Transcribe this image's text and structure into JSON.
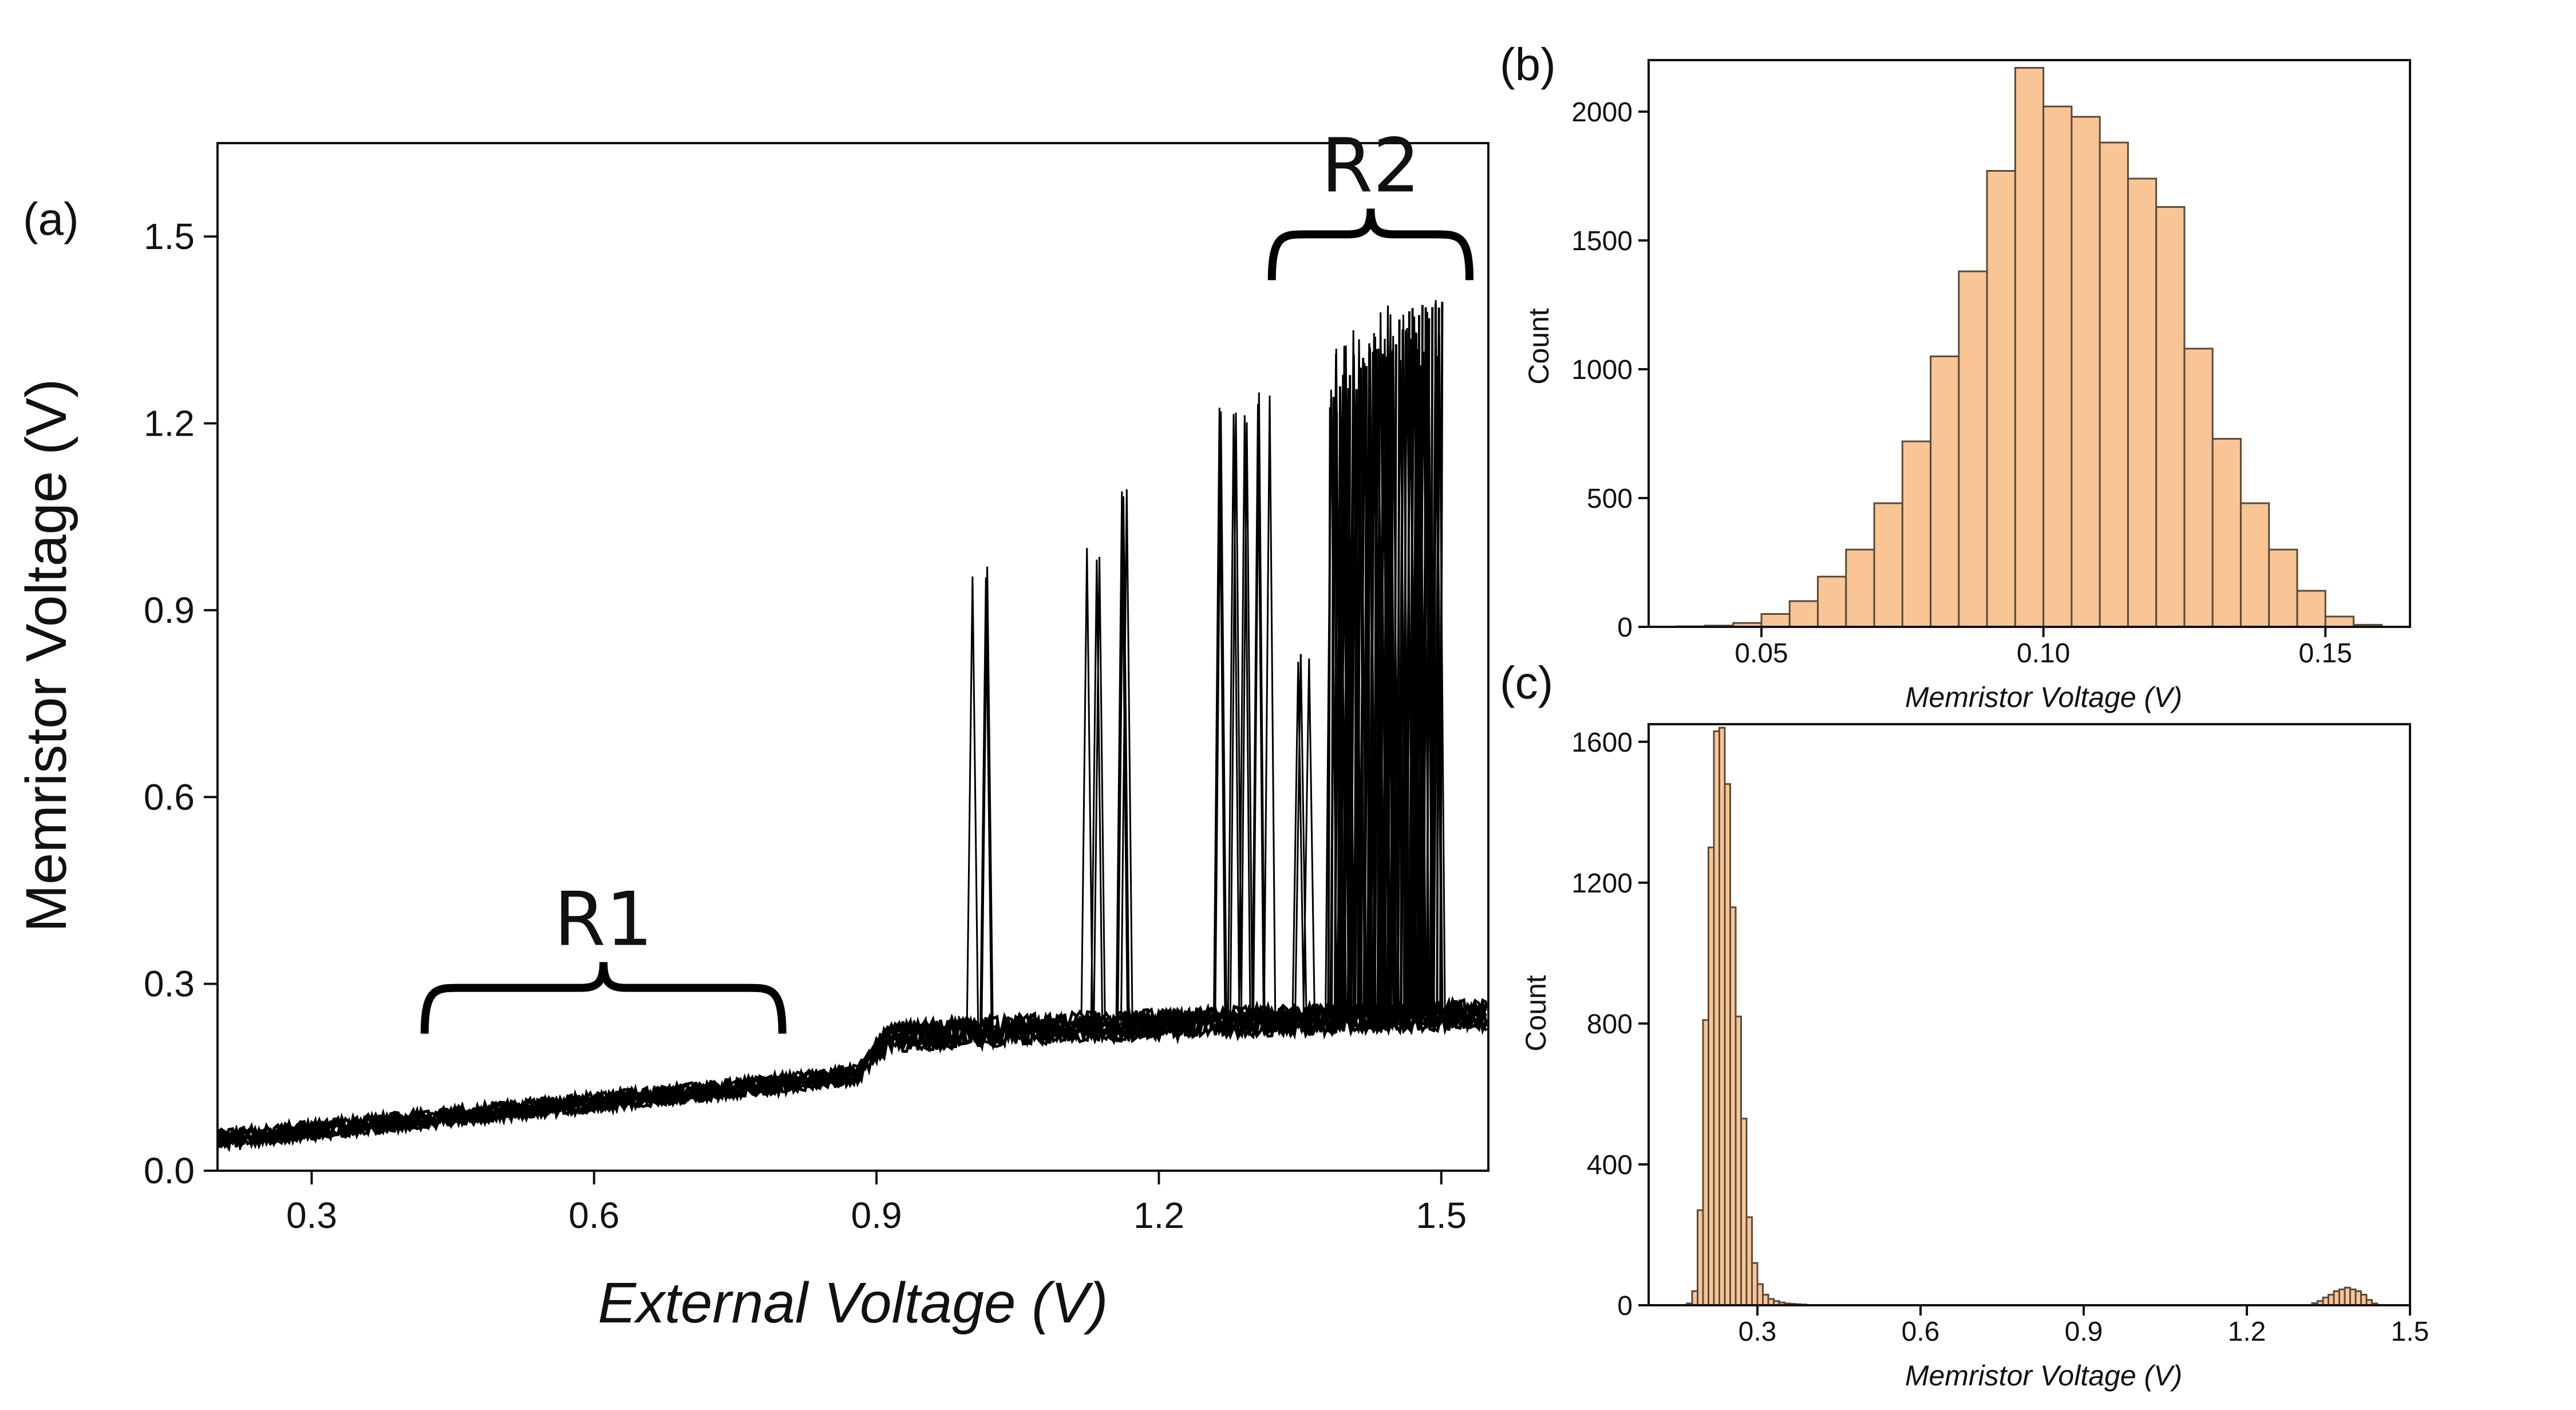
{
  "colors": {
    "trace": "#000000",
    "bar_fill": "#f9c595",
    "bar_stroke": "#5a4a3a",
    "axis": "#111111"
  },
  "chart_data": [
    {
      "panel_label": "(a)",
      "type": "line",
      "xlabel": "External Voltage (V)",
      "ylabel": "Memristor Voltage (V)",
      "xlim": [
        0.2,
        1.55
      ],
      "ylim": [
        0.0,
        1.65
      ],
      "xticks": [
        0.3,
        0.6,
        0.9,
        1.2,
        1.5
      ],
      "xtick_labels": [
        "0.3",
        "0.6",
        "0.9",
        "1.2",
        "1.5"
      ],
      "yticks": [
        0.0,
        0.3,
        0.6,
        0.9,
        1.2,
        1.5
      ],
      "ytick_labels": [
        "0.0",
        "0.3",
        "0.6",
        "0.9",
        "1.2",
        "1.5"
      ],
      "baseline": {
        "x": [
          0.2,
          0.3,
          0.4,
          0.5,
          0.6,
          0.7,
          0.8,
          0.88,
          0.9,
          0.92,
          0.93,
          1.0,
          1.1,
          1.2,
          1.3,
          1.4,
          1.5,
          1.55
        ],
        "y": [
          0.05,
          0.065,
          0.08,
          0.095,
          0.11,
          0.125,
          0.14,
          0.155,
          0.19,
          0.22,
          0.215,
          0.222,
          0.23,
          0.235,
          0.24,
          0.245,
          0.25,
          0.25
        ]
      },
      "spikes": [
        {
          "x": 1.01,
          "peak": 0.98
        },
        {
          "x": 1.13,
          "peak": 1.01
        },
        {
          "x": 1.16,
          "peak": 1.11
        },
        {
          "x": 1.27,
          "peak": 1.23
        },
        {
          "x": 1.29,
          "peak": 1.22
        },
        {
          "x": 1.31,
          "peak": 1.25
        },
        {
          "x": 1.35,
          "peak": 0.84
        },
        {
          "x": 1.39,
          "peak": 1.33
        },
        {
          "x": 1.41,
          "peak": 1.35
        },
        {
          "x": 1.43,
          "peak": 1.38
        },
        {
          "x": 1.45,
          "peak": 1.4
        },
        {
          "x": 1.47,
          "peak": 1.41
        },
        {
          "x": 1.49,
          "peak": 1.42
        }
      ],
      "annotations": [
        {
          "text": "R1",
          "x_start": 0.42,
          "x_end": 0.8,
          "bracket_y": 0.22
        },
        {
          "text": "R2",
          "x_start": 1.32,
          "x_end": 1.53,
          "bracket_y": 1.43
        }
      ]
    },
    {
      "panel_label": "(b)",
      "type": "bar",
      "xlabel": "Memristor Voltage (V)",
      "ylabel": "Count",
      "xlim": [
        0.03,
        0.165
      ],
      "ylim": [
        0,
        2200
      ],
      "xticks": [
        0.05,
        0.1,
        0.15
      ],
      "xtick_labels": [
        "0.05",
        "0.10",
        "0.15"
      ],
      "yticks": [
        0,
        500,
        1000,
        1500,
        2000
      ],
      "ytick_labels": [
        "0",
        "500",
        "1000",
        "1500",
        "2000"
      ],
      "bin_width": 0.005,
      "bin_starts": [
        0.035,
        0.04,
        0.045,
        0.05,
        0.055,
        0.06,
        0.065,
        0.07,
        0.075,
        0.08,
        0.085,
        0.09,
        0.095,
        0.1,
        0.105,
        0.11,
        0.115,
        0.12,
        0.125,
        0.13,
        0.135,
        0.14,
        0.145,
        0.15,
        0.155
      ],
      "values": [
        2,
        5,
        15,
        50,
        100,
        195,
        300,
        480,
        720,
        1050,
        1380,
        1770,
        2170,
        2020,
        1980,
        1880,
        1740,
        1630,
        1080,
        730,
        480,
        300,
        140,
        40,
        8
      ]
    },
    {
      "panel_label": "(c)",
      "type": "bar",
      "xlabel": "Memristor Voltage (V)",
      "ylabel": "Count",
      "xlim": [
        0.1,
        1.5
      ],
      "ylim": [
        0,
        1650
      ],
      "xticks": [
        0.3,
        0.6,
        0.9,
        1.2,
        1.5
      ],
      "xtick_labels": [
        "0.3",
        "0.6",
        "0.9",
        "1.2",
        "1.5"
      ],
      "yticks": [
        0,
        400,
        800,
        1200,
        1600
      ],
      "ytick_labels": [
        "0",
        "400",
        "800",
        "1200",
        "1600"
      ],
      "bin_width": 0.01,
      "bin_starts": [
        0.17,
        0.18,
        0.19,
        0.2,
        0.21,
        0.22,
        0.23,
        0.24,
        0.25,
        0.26,
        0.27,
        0.28,
        0.29,
        0.3,
        0.31,
        0.32,
        0.33,
        0.34,
        0.35,
        0.36,
        0.37,
        0.38,
        1.32,
        1.33,
        1.34,
        1.35,
        1.36,
        1.37,
        1.38,
        1.39,
        1.4,
        1.41,
        1.42,
        1.43
      ],
      "values": [
        5,
        40,
        270,
        810,
        1300,
        1630,
        1640,
        1480,
        1130,
        820,
        530,
        250,
        120,
        60,
        30,
        18,
        12,
        8,
        5,
        4,
        3,
        2,
        6,
        12,
        22,
        30,
        40,
        45,
        50,
        45,
        40,
        30,
        15,
        5
      ]
    }
  ]
}
